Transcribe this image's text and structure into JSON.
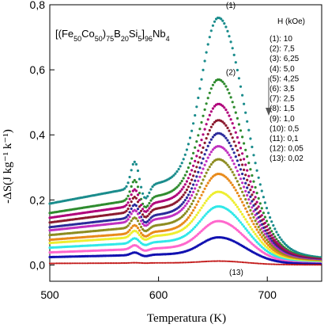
{
  "chart_data": {
    "type": "scatter",
    "formula": {
      "p1": "[(Fe",
      "s1": "50",
      "p2": "Co",
      "s2": "50",
      "p3": ")",
      "s3": "75",
      "p4": "B",
      "s4": "20",
      "p5": "Si",
      "s5": "5",
      "p6": "]",
      "s6": "96",
      "p7": "Nb",
      "s7": "4"
    },
    "xlabel": "Temperatura (K)",
    "ylabel": "-ΔS(J kg⁻¹ k⁻¹)",
    "xlim": [
      500,
      750
    ],
    "ylim": [
      -0.05,
      0.8
    ],
    "xticks": [
      {
        "value": 500,
        "label": "500"
      },
      {
        "value": 600,
        "label": "600"
      },
      {
        "value": 700,
        "label": "700"
      }
    ],
    "yticks": [
      {
        "value": 0.0,
        "label": "0,0"
      },
      {
        "value": 0.2,
        "label": "0,2"
      },
      {
        "value": 0.4,
        "label": "0,4"
      },
      {
        "value": 0.6,
        "label": "0,6"
      },
      {
        "value": 0.8,
        "label": "0,8"
      }
    ],
    "legend_title": "H (kOe)",
    "legend_position": "top-right",
    "curve_labels": [
      {
        "text": "(1)",
        "x": 662,
        "y": 0.79
      },
      {
        "text": "(2)",
        "x": 662,
        "y": 0.585
      },
      {
        "text": "(13)",
        "x": 665,
        "y": -0.03
      }
    ],
    "series": [
      {
        "name": "(1): 10",
        "color": "#1a8c8c",
        "base": 0.195,
        "peak": 0.76,
        "bump": 0.08
      },
      {
        "name": "(2): 7,5",
        "color": "#2e8b2e",
        "base": 0.165,
        "peak": 0.57,
        "bump": 0.06
      },
      {
        "name": "(3): 6,25",
        "color": "#b0007a",
        "base": 0.15,
        "peak": 0.495,
        "bump": 0.05
      },
      {
        "name": "(4): 5,0",
        "color": "#8b1a2e",
        "base": 0.135,
        "peak": 0.445,
        "bump": 0.045
      },
      {
        "name": "(5): 4,25",
        "color": "#2a2a9a",
        "base": 0.12,
        "peak": 0.405,
        "bump": 0.04
      },
      {
        "name": "(6): 3,5",
        "color": "#c030c0",
        "base": 0.11,
        "peak": 0.365,
        "bump": 0.035
      },
      {
        "name": "(7): 2,5",
        "color": "#8c8c20",
        "base": 0.095,
        "peak": 0.325,
        "bump": 0.03
      },
      {
        "name": "(8): 1,5",
        "color": "#e88a1a",
        "base": 0.08,
        "peak": 0.28,
        "bump": 0.025
      },
      {
        "name": "(9): 1,0",
        "color": "#eeee30",
        "base": 0.07,
        "peak": 0.225,
        "bump": 0.02
      },
      {
        "name": "(10): 0,5",
        "color": "#30e8e8",
        "base": 0.055,
        "peak": 0.18,
        "bump": 0.015
      },
      {
        "name": "(11): 0,1",
        "color": "#ff66cc",
        "base": 0.04,
        "peak": 0.135,
        "bump": 0.012
      },
      {
        "name": "(12): 0,05",
        "color": "#1010b0",
        "base": 0.025,
        "peak": 0.085,
        "bump": 0.008
      },
      {
        "name": "(13): 0,02",
        "color": "#c01010",
        "base": 0.005,
        "peak": 0.012,
        "bump": 0.001
      }
    ]
  }
}
